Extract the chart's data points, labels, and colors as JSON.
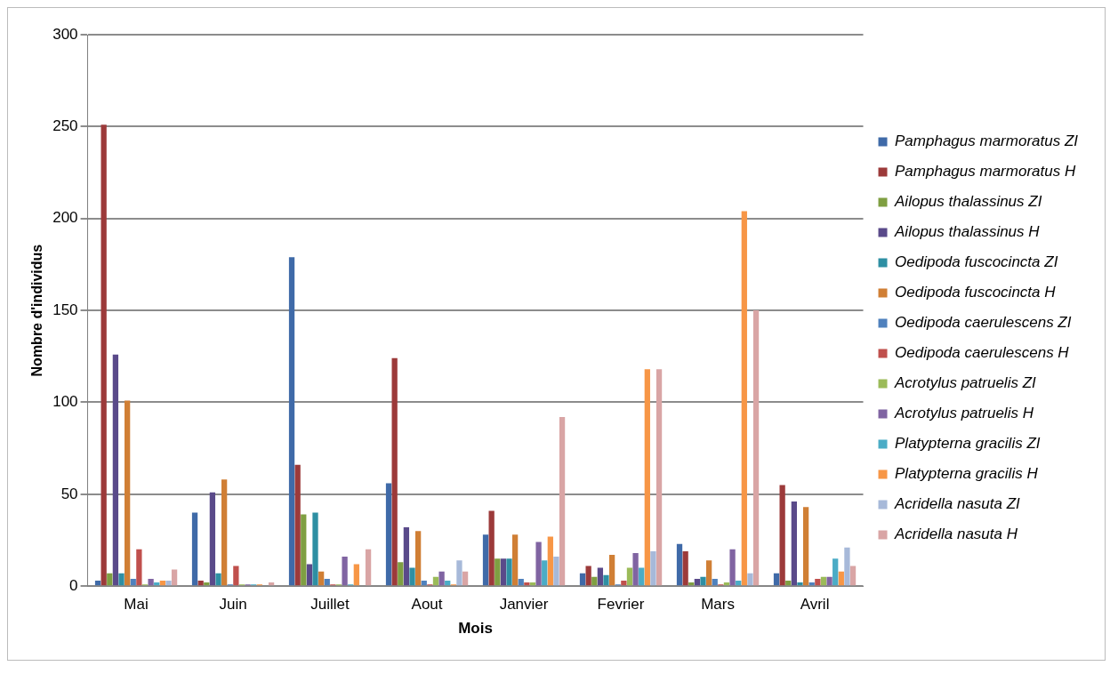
{
  "chart_data": {
    "type": "bar",
    "xlabel": "Mois",
    "ylabel": "Nombre d'individus",
    "categories": [
      "Mai",
      "Juin",
      "Juillet",
      "Aout",
      "Janvier",
      "Fevrier",
      "Mars",
      "Avril"
    ],
    "ylim": [
      0,
      300
    ],
    "yticks": [
      0,
      50,
      100,
      150,
      200,
      250,
      300
    ],
    "grid": "y",
    "legend": "right",
    "series": [
      {
        "name": "Pamphagus marmoratus ZI",
        "color": "#3f6aa8",
        "values": [
          3,
          40,
          179,
          56,
          28,
          7,
          23,
          7
        ]
      },
      {
        "name": "Pamphagus marmoratus H",
        "color": "#9c3a3a",
        "values": [
          251,
          3,
          66,
          124,
          41,
          11,
          19,
          55
        ]
      },
      {
        "name": "Ailopus thalassinus ZI",
        "color": "#7f9f42",
        "values": [
          7,
          2,
          39,
          13,
          15,
          5,
          2,
          3
        ]
      },
      {
        "name": "Ailopus thalassinus H",
        "color": "#5a4a8a",
        "values": [
          126,
          51,
          12,
          32,
          15,
          10,
          4,
          46
        ]
      },
      {
        "name": "Oedipoda fuscocincta ZI",
        "color": "#2e8fa3",
        "values": [
          7,
          7,
          40,
          10,
          15,
          6,
          5,
          2
        ]
      },
      {
        "name": "Oedipoda fuscocincta H",
        "color": "#d07f35",
        "values": [
          101,
          58,
          8,
          30,
          28,
          17,
          14,
          43
        ]
      },
      {
        "name": "Oedipoda caerulescens ZI",
        "color": "#4f81bd",
        "values": [
          4,
          1,
          4,
          3,
          4,
          1,
          4,
          2
        ]
      },
      {
        "name": "Oedipoda caerulescens H",
        "color": "#c0504d",
        "values": [
          20,
          11,
          1,
          1,
          2,
          3,
          1,
          4
        ]
      },
      {
        "name": "Acrotylus patruelis ZI",
        "color": "#9bbb59",
        "values": [
          1,
          1,
          1,
          5,
          2,
          10,
          2,
          5
        ]
      },
      {
        "name": "Acrotylus patruelis H",
        "color": "#8064a2",
        "values": [
          4,
          1,
          16,
          8,
          24,
          18,
          20,
          5
        ]
      },
      {
        "name": "Platypterna gracilis ZI",
        "color": "#4bacc6",
        "values": [
          2,
          1,
          1,
          3,
          14,
          10,
          3,
          15
        ]
      },
      {
        "name": "Platypterna gracilis H",
        "color": "#f79646",
        "values": [
          3,
          1,
          12,
          1,
          27,
          118,
          204,
          8
        ]
      },
      {
        "name": "Acridella nasuta ZI",
        "color": "#a7b9d9",
        "values": [
          3,
          null,
          null,
          14,
          16,
          19,
          7,
          21
        ]
      },
      {
        "name": "Acridella nasuta H",
        "color": "#d9a5a5",
        "values": [
          9,
          2,
          20,
          8,
          92,
          118,
          150,
          11
        ]
      }
    ]
  }
}
